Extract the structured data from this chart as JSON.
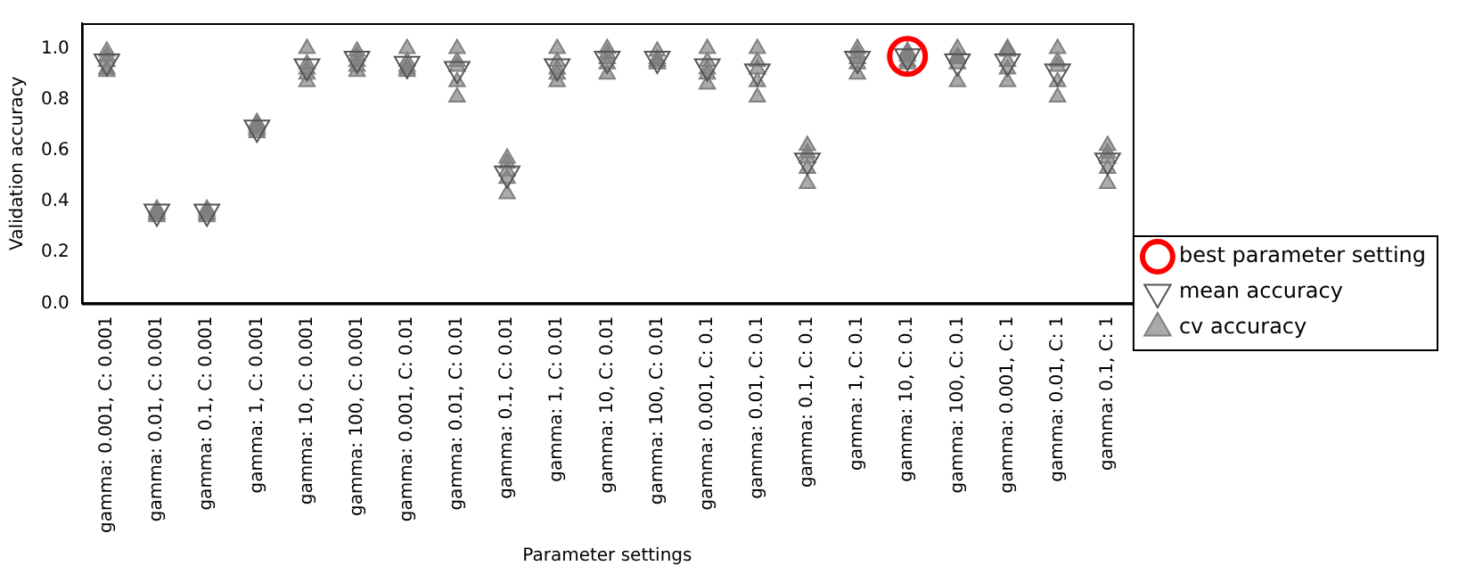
{
  "chart_data": {
    "type": "scatter",
    "xlabel": "Parameter settings",
    "ylabel": "Validation accuracy",
    "categories": [
      "gamma: 0.001, C: 0.001",
      "gamma: 0.01, C: 0.001",
      "gamma: 0.1, C: 0.001",
      "gamma: 1, C: 0.001",
      "gamma: 10, C: 0.001",
      "gamma: 100, C: 0.001",
      "gamma: 0.001, C: 0.01",
      "gamma: 0.01, C: 0.01",
      "gamma: 0.1, C: 0.01",
      "gamma: 1, C: 0.01",
      "gamma: 10, C: 0.01",
      "gamma: 100, C: 0.01",
      "gamma: 0.001, C: 0.1",
      "gamma: 0.01, C: 0.1",
      "gamma: 0.1, C: 0.1",
      "gamma: 1, C: 0.1",
      "gamma: 10, C: 0.1",
      "gamma: 100, C: 0.1",
      "gamma: 0.001, C: 1",
      "gamma: 0.01, C: 1",
      "gamma: 0.1, C: 1"
    ],
    "ylim": [
      0,
      1.1
    ],
    "yticks": [
      {
        "value": 0,
        "label": "0.0"
      },
      {
        "value": 0.2,
        "label": "0.2"
      },
      {
        "value": 0.4,
        "label": "0.4"
      },
      {
        "value": 0.6,
        "label": "0.6"
      },
      {
        "value": 0.8,
        "label": "0.8"
      },
      {
        "value": 1,
        "label": "1.0"
      }
    ],
    "grid": false,
    "legend": "right",
    "series": [
      {
        "name": "cv accuracy",
        "color": "#808080",
        "marker": "triangle",
        "x": [
          "gamma: 0.001, C: 0.001",
          "gamma: 0.001, C: 0.001",
          "gamma: 0.001, C: 0.001",
          "gamma: 0.001, C: 0.001",
          "gamma: 0.001, C: 0.001",
          "gamma: 0.01, C: 0.001",
          "gamma: 0.01, C: 0.001",
          "gamma: 0.01, C: 0.001",
          "gamma: 0.01, C: 0.001",
          "gamma: 0.01, C: 0.001",
          "gamma: 0.1, C: 0.001",
          "gamma: 0.1, C: 0.001",
          "gamma: 0.1, C: 0.001",
          "gamma: 0.1, C: 0.001",
          "gamma: 0.1, C: 0.001",
          "gamma: 1, C: 0.001",
          "gamma: 1, C: 0.001",
          "gamma: 1, C: 0.001",
          "gamma: 1, C: 0.001",
          "gamma: 1, C: 0.001",
          "gamma: 10, C: 0.001",
          "gamma: 10, C: 0.001",
          "gamma: 10, C: 0.001",
          "gamma: 10, C: 0.001",
          "gamma: 10, C: 0.001",
          "gamma: 100, C: 0.001",
          "gamma: 100, C: 0.001",
          "gamma: 100, C: 0.001",
          "gamma: 100, C: 0.001",
          "gamma: 100, C: 0.001",
          "gamma: 0.001, C: 0.01",
          "gamma: 0.001, C: 0.01",
          "gamma: 0.001, C: 0.01",
          "gamma: 0.001, C: 0.01",
          "gamma: 0.001, C: 0.01",
          "gamma: 0.01, C: 0.01",
          "gamma: 0.01, C: 0.01",
          "gamma: 0.01, C: 0.01",
          "gamma: 0.01, C: 0.01",
          "gamma: 0.01, C: 0.01",
          "gamma: 0.1, C: 0.01",
          "gamma: 0.1, C: 0.01",
          "gamma: 0.1, C: 0.01",
          "gamma: 0.1, C: 0.01",
          "gamma: 0.1, C: 0.01",
          "gamma: 1, C: 0.01",
          "gamma: 1, C: 0.01",
          "gamma: 1, C: 0.01",
          "gamma: 1, C: 0.01",
          "gamma: 1, C: 0.01",
          "gamma: 10, C: 0.01",
          "gamma: 10, C: 0.01",
          "gamma: 10, C: 0.01",
          "gamma: 10, C: 0.01",
          "gamma: 10, C: 0.01",
          "gamma: 100, C: 0.01",
          "gamma: 100, C: 0.01",
          "gamma: 100, C: 0.01",
          "gamma: 100, C: 0.01",
          "gamma: 100, C: 0.01",
          "gamma: 0.001, C: 0.1",
          "gamma: 0.001, C: 0.1",
          "gamma: 0.001, C: 0.1",
          "gamma: 0.001, C: 0.1",
          "gamma: 0.001, C: 0.1",
          "gamma: 0.01, C: 0.1",
          "gamma: 0.01, C: 0.1",
          "gamma: 0.01, C: 0.1",
          "gamma: 0.01, C: 0.1",
          "gamma: 0.01, C: 0.1",
          "gamma: 0.1, C: 0.1",
          "gamma: 0.1, C: 0.1",
          "gamma: 0.1, C: 0.1",
          "gamma: 0.1, C: 0.1",
          "gamma: 0.1, C: 0.1",
          "gamma: 1, C: 0.1",
          "gamma: 1, C: 0.1",
          "gamma: 1, C: 0.1",
          "gamma: 1, C: 0.1",
          "gamma: 1, C: 0.1",
          "gamma: 10, C: 0.1",
          "gamma: 10, C: 0.1",
          "gamma: 10, C: 0.1",
          "gamma: 10, C: 0.1",
          "gamma: 10, C: 0.1",
          "gamma: 100, C: 0.1",
          "gamma: 100, C: 0.1",
          "gamma: 100, C: 0.1",
          "gamma: 100, C: 0.1",
          "gamma: 100, C: 0.1",
          "gamma: 0.001, C: 1",
          "gamma: 0.001, C: 1",
          "gamma: 0.001, C: 1",
          "gamma: 0.001, C: 1",
          "gamma: 0.001, C: 1",
          "gamma: 0.01, C: 1",
          "gamma: 0.01, C: 1",
          "gamma: 0.01, C: 1",
          "gamma: 0.01, C: 1",
          "gamma: 0.01, C: 1",
          "gamma: 0.1, C: 1",
          "gamma: 0.1, C: 1",
          "gamma: 0.1, C: 1",
          "gamma: 0.1, C: 1",
          "gamma: 0.1, C: 1"
        ],
        "values": [
          0.99,
          0.97,
          0.95,
          0.92,
          0.91,
          0.37,
          0.36,
          0.35,
          0.35,
          0.34,
          0.37,
          0.36,
          0.35,
          0.35,
          0.34,
          0.71,
          0.7,
          0.69,
          0.68,
          0.67,
          1.0,
          0.94,
          0.92,
          0.9,
          0.87,
          0.99,
          0.97,
          0.95,
          0.93,
          0.91,
          1.0,
          0.95,
          0.93,
          0.92,
          0.91,
          1.0,
          0.95,
          0.93,
          0.87,
          0.81,
          0.57,
          0.55,
          0.52,
          0.49,
          0.43,
          1.0,
          0.95,
          0.92,
          0.9,
          0.87,
          1.0,
          0.98,
          0.96,
          0.94,
          0.9,
          0.99,
          0.96,
          0.95,
          0.95,
          0.94,
          1.0,
          0.95,
          0.92,
          0.9,
          0.86,
          1.0,
          0.95,
          0.92,
          0.87,
          0.81,
          0.62,
          0.59,
          0.57,
          0.53,
          0.47,
          1.0,
          0.98,
          0.96,
          0.94,
          0.9,
          0.99,
          0.98,
          0.97,
          0.95,
          0.94,
          1.0,
          0.97,
          0.96,
          0.94,
          0.87,
          1.0,
          0.99,
          0.95,
          0.92,
          0.87,
          1.0,
          0.95,
          0.93,
          0.87,
          0.81,
          0.62,
          0.59,
          0.57,
          0.53,
          0.47
        ]
      },
      {
        "name": "mean accuracy",
        "color": "#555555",
        "marker": "triangle_down",
        "values": [
          0.95,
          0.36,
          0.36,
          0.69,
          0.93,
          0.96,
          0.94,
          0.92,
          0.51,
          0.93,
          0.96,
          0.96,
          0.93,
          0.91,
          0.56,
          0.96,
          0.97,
          0.95,
          0.95,
          0.91,
          0.56
        ]
      },
      {
        "name": "best parameter setting",
        "color": "#ff0000",
        "marker": "circle",
        "x": [
          "gamma: 10, C: 0.1"
        ],
        "values": [
          0.97
        ]
      }
    ]
  }
}
